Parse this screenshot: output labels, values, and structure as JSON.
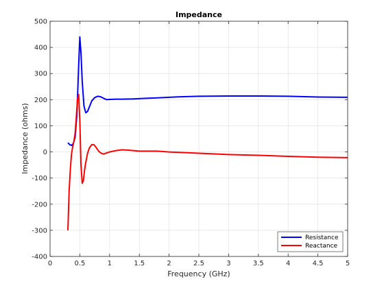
{
  "chart_data": {
    "type": "line",
    "title": "Impedance",
    "xlabel": "Frequency (GHz)",
    "ylabel": "Impedance (ohms)",
    "xlim": [
      0,
      5
    ],
    "ylim": [
      -400,
      500
    ],
    "xticks": [
      0,
      0.5,
      1,
      1.5,
      2,
      2.5,
      3,
      3.5,
      4,
      4.5,
      5
    ],
    "xtick_labels": [
      "0",
      "0.5",
      "1",
      "1.5",
      "2",
      "2.5",
      "3",
      "3.5",
      "4",
      "4.5",
      "5"
    ],
    "yticks": [
      -400,
      -300,
      -200,
      -100,
      0,
      100,
      200,
      300,
      400,
      500
    ],
    "ytick_labels": [
      "-400",
      "-300",
      "-200",
      "-100",
      "0",
      "100",
      "200",
      "300",
      "400",
      "500"
    ],
    "grid": true,
    "legend_position": "bottom-right",
    "series": [
      {
        "name": "Resistance",
        "color": "#0000ff",
        "x": [
          0.3,
          0.33,
          0.36,
          0.39,
          0.42,
          0.45,
          0.48,
          0.5,
          0.52,
          0.54,
          0.57,
          0.6,
          0.63,
          0.66,
          0.7,
          0.75,
          0.8,
          0.85,
          0.9,
          0.95,
          1.0,
          1.1,
          1.2,
          1.4,
          1.6,
          1.8,
          2.0,
          2.2,
          2.5,
          3.0,
          3.5,
          4.0,
          4.5,
          5.0
        ],
        "y": [
          35,
          28,
          25,
          32,
          55,
          140,
          330,
          440,
          380,
          270,
          175,
          150,
          155,
          172,
          195,
          208,
          213,
          211,
          205,
          200,
          201,
          202,
          202,
          203,
          205,
          207,
          209,
          211,
          213,
          214,
          214,
          213,
          210,
          209
        ]
      },
      {
        "name": "Reactance",
        "color": "#ff0000",
        "x": [
          0.3,
          0.32,
          0.34,
          0.36,
          0.38,
          0.4,
          0.42,
          0.44,
          0.46,
          0.48,
          0.5,
          0.52,
          0.54,
          0.56,
          0.58,
          0.6,
          0.63,
          0.66,
          0.7,
          0.74,
          0.78,
          0.82,
          0.86,
          0.9,
          0.95,
          1.0,
          1.1,
          1.2,
          1.3,
          1.5,
          1.8,
          2.0,
          2.5,
          3.0,
          3.5,
          4.0,
          4.5,
          5.0
        ],
        "y": [
          -300,
          -150,
          -70,
          -10,
          20,
          40,
          70,
          130,
          200,
          220,
          120,
          -50,
          -120,
          -110,
          -70,
          -40,
          -5,
          15,
          28,
          27,
          15,
          2,
          -5,
          -8,
          -4,
          0,
          5,
          8,
          7,
          3,
          3,
          0,
          -5,
          -10,
          -13,
          -17,
          -20,
          -22
        ]
      }
    ]
  }
}
